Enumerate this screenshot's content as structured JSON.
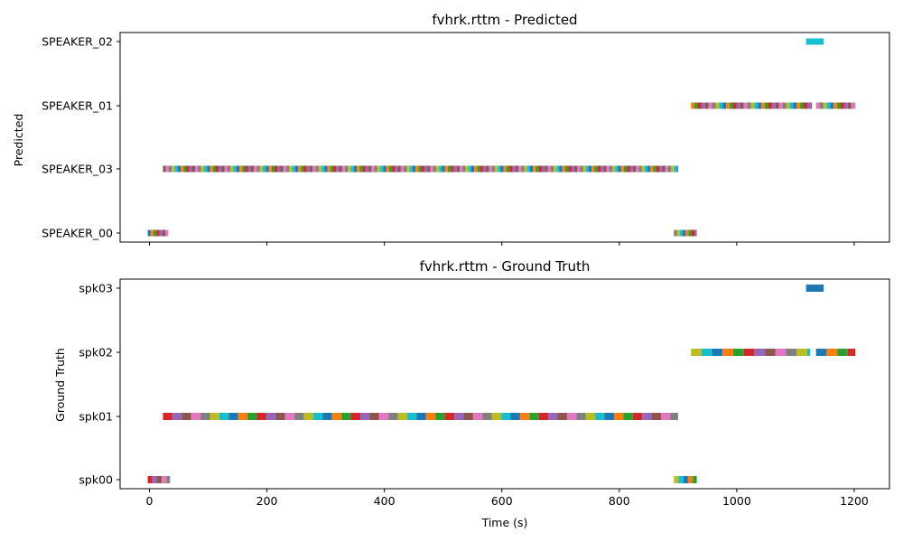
{
  "chart_data": [
    {
      "type": "gantt",
      "title": "fvhrk.rttm - Predicted",
      "ylabel": "Predicted",
      "xlabel": "",
      "xlim": [
        -50,
        1260
      ],
      "xticks": [
        0,
        200,
        400,
        600,
        800,
        1000,
        1200
      ],
      "show_xtick_labels": false,
      "grid": false,
      "categories": [
        "SPEAKER_00",
        "SPEAKER_03",
        "SPEAKER_01",
        "SPEAKER_02"
      ],
      "rows": [
        {
          "name": "SPEAKER_00",
          "segments": [
            [
              -3,
              32
            ],
            [
              893,
              932
            ]
          ],
          "seg_width": 5
        },
        {
          "name": "SPEAKER_03",
          "segments": [
            [
              23,
              900
            ]
          ],
          "seg_width": 5,
          "tail": [
            [
              855,
              900
            ]
          ]
        },
        {
          "name": "SPEAKER_01",
          "segments": [
            [
              922,
              1128
            ],
            [
              1135,
              1202
            ]
          ],
          "seg_width": 6
        },
        {
          "name": "SPEAKER_02",
          "segments": [
            [
              1118,
              1148
            ]
          ],
          "seg_width": 30,
          "color": "#17becf"
        }
      ]
    },
    {
      "type": "gantt",
      "title": "fvhrk.rttm - Ground Truth",
      "ylabel": "Ground Truth",
      "xlabel": "Time (s)",
      "xlim": [
        -50,
        1260
      ],
      "xticks": [
        0,
        200,
        400,
        600,
        800,
        1000,
        1200
      ],
      "xtick_labels": [
        "0",
        "200",
        "400",
        "600",
        "800",
        "1000",
        "1200"
      ],
      "show_xtick_labels": true,
      "grid": false,
      "categories": [
        "spk00",
        "spk01",
        "spk02",
        "spk03"
      ],
      "rows": [
        {
          "name": "spk00",
          "segments": [
            [
              -3,
              35
            ],
            [
              893,
              932
            ]
          ],
          "seg_width": 8
        },
        {
          "name": "spk01",
          "segments": [
            [
              23,
              900
            ]
          ],
          "seg_width": 16
        },
        {
          "name": "spk02",
          "segments": [
            [
              922,
              1125
            ],
            [
              1135,
              1202
            ]
          ],
          "seg_width": 18
        },
        {
          "name": "spk03",
          "segments": [
            [
              1118,
              1148
            ]
          ],
          "seg_width": 30,
          "color": "#1f77b4"
        }
      ]
    }
  ],
  "palette": [
    "#1f77b4",
    "#ff7f0e",
    "#2ca02c",
    "#d62728",
    "#9467bd",
    "#8c564b",
    "#e377c2",
    "#7f7f7f",
    "#bcbd22",
    "#17becf"
  ]
}
